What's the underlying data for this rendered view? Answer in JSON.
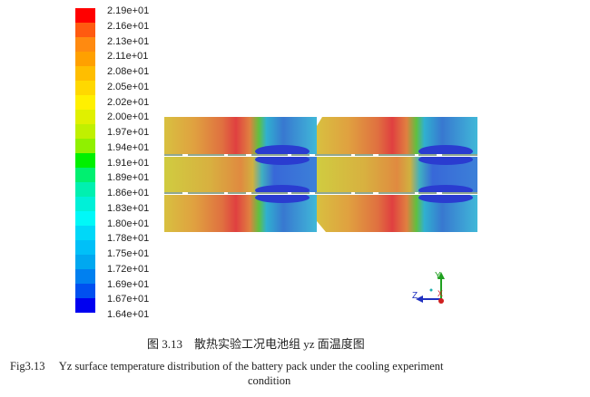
{
  "legend": {
    "labels": [
      "2.19e+01",
      "2.16e+01",
      "2.13e+01",
      "2.11e+01",
      "2.08e+01",
      "2.05e+01",
      "2.02e+01",
      "2.00e+01",
      "1.97e+01",
      "1.94e+01",
      "1.91e+01",
      "1.89e+01",
      "1.86e+01",
      "1.83e+01",
      "1.80e+01",
      "1.78e+01",
      "1.75e+01",
      "1.72e+01",
      "1.69e+01",
      "1.67e+01",
      "1.64e+01"
    ],
    "colors": [
      "#ff0000",
      "#ff5a10",
      "#ff8a10",
      "#ffa000",
      "#ffbe00",
      "#ffd800",
      "#fff000",
      "#e0f000",
      "#c0f000",
      "#90f000",
      "#00f000",
      "#00f070",
      "#00f0b0",
      "#00f0d8",
      "#00f8f8",
      "#00d8f8",
      "#00c0f8",
      "#00a8f0",
      "#0080f0",
      "#0050f0",
      "#0000f0"
    ]
  },
  "axes": {
    "y_label": "Y",
    "z_label": "Z",
    "x_label": "X"
  },
  "caption": {
    "cn": "图 3.13    散热实验工况电池组 yz 面温度图",
    "en_line1": "Fig3.13     Yz surface temperature distribution of the battery pack under the cooling experiment",
    "en_line2": "condition"
  }
}
